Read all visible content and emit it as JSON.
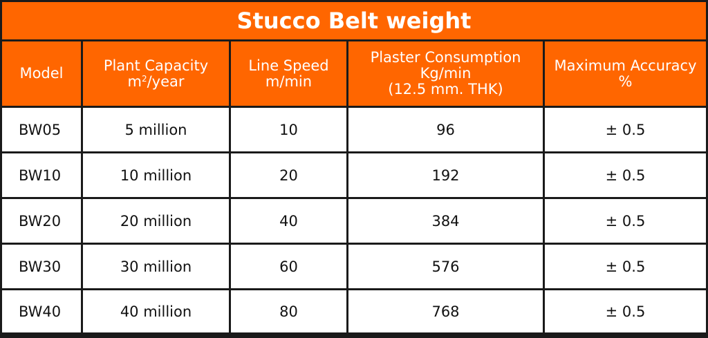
{
  "title": "Stucco Belt weight",
  "headers": {
    "model": "Model",
    "capacity_line1": "Plant Capacity",
    "capacity_unit_base": "m",
    "capacity_unit_sup": "2",
    "capacity_unit_rest": "/year",
    "speed_line1": "Line Speed",
    "speed_line2": "m/min",
    "plaster_line1": "Plaster Consumption",
    "plaster_line2": "Kg/min",
    "plaster_line3": "(12.5 mm. THK)",
    "accuracy_line1": "Maximum Accuracy",
    "accuracy_line2": "%"
  },
  "rows": [
    {
      "model": "BW05",
      "capacity": "5 million",
      "speed": "10",
      "plaster": "96",
      "accuracy": "± 0.5"
    },
    {
      "model": "BW10",
      "capacity": "10 million",
      "speed": "20",
      "plaster": "192",
      "accuracy": "± 0.5"
    },
    {
      "model": "BW20",
      "capacity": "20 million",
      "speed": "40",
      "plaster": "384",
      "accuracy": "± 0.5"
    },
    {
      "model": "BW30",
      "capacity": "30 million",
      "speed": "60",
      "plaster": "576",
      "accuracy": "± 0.5"
    },
    {
      "model": "BW40",
      "capacity": "40 million",
      "speed": "80",
      "plaster": "768",
      "accuracy": "± 0.5"
    }
  ],
  "colors": {
    "header_bg": "#ff6600",
    "border": "#1a1a1a",
    "header_text": "#ffffff",
    "cell_text": "#111111"
  }
}
